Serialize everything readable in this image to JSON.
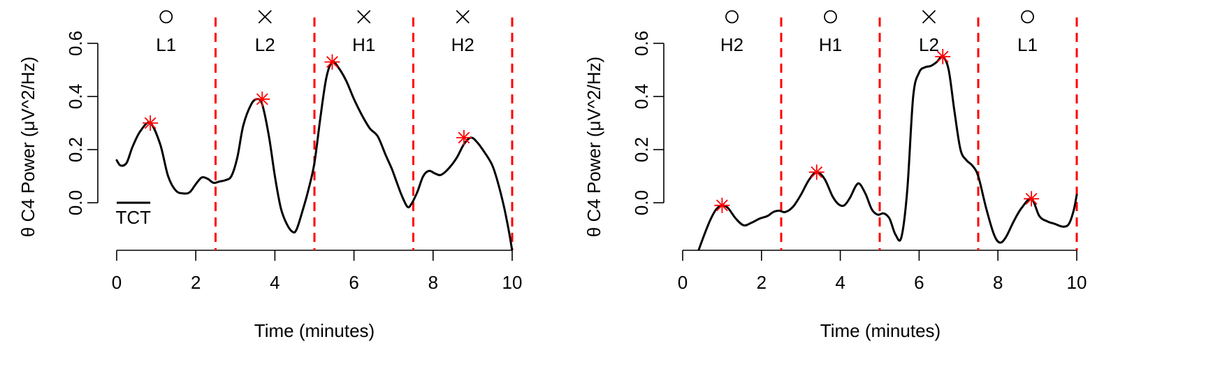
{
  "chart_data": [
    {
      "type": "line",
      "xlabel": "Time (minutes)",
      "ylabel": "θ C4 Power (μV^2/Hz)",
      "xlim": [
        0,
        10
      ],
      "ylim": [
        -0.18,
        0.6
      ],
      "xticks": [
        "0",
        "2",
        "4",
        "6",
        "8",
        "10"
      ],
      "yticks": [
        "0.0",
        "0.2",
        "0.4",
        "0.6"
      ],
      "boundaries": [
        2.5,
        5,
        7.5,
        10
      ],
      "segment_labels": [
        "L1",
        "L2",
        "H1",
        "H2"
      ],
      "segment_markers": [
        "circle",
        "cross",
        "cross",
        "cross"
      ],
      "annotation": "TCT",
      "series": [
        {
          "x": [
            0,
            0.1,
            0.25,
            0.4,
            0.6,
            0.85,
            1.1,
            1.3,
            1.5,
            1.7,
            1.85,
            2.0,
            2.15,
            2.3,
            2.45,
            2.6,
            2.75,
            2.9,
            3.05,
            3.2,
            3.4,
            3.55,
            3.68,
            3.85,
            4.0,
            4.15,
            4.3,
            4.45,
            4.55,
            4.7,
            4.85,
            5.0,
            5.15,
            5.3,
            5.45,
            5.6,
            5.8,
            6.0,
            6.2,
            6.4,
            6.6,
            6.8,
            6.95,
            7.05,
            7.2,
            7.35,
            7.45,
            7.6,
            7.75,
            7.9,
            8.05,
            8.2,
            8.4,
            8.6,
            8.78,
            8.95,
            9.1,
            9.3,
            9.5,
            9.65,
            9.8,
            9.92,
            10.0
          ],
          "y": [
            0.16,
            0.14,
            0.15,
            0.21,
            0.27,
            0.3,
            0.22,
            0.1,
            0.045,
            0.035,
            0.04,
            0.07,
            0.095,
            0.09,
            0.075,
            0.08,
            0.085,
            0.1,
            0.17,
            0.29,
            0.37,
            0.39,
            0.37,
            0.25,
            0.1,
            -0.02,
            -0.08,
            -0.11,
            -0.1,
            -0.03,
            0.05,
            0.15,
            0.32,
            0.47,
            0.53,
            0.51,
            0.46,
            0.39,
            0.33,
            0.28,
            0.25,
            0.18,
            0.13,
            0.09,
            0.03,
            -0.015,
            -0.005,
            0.04,
            0.1,
            0.12,
            0.11,
            0.105,
            0.13,
            0.17,
            0.22,
            0.245,
            0.23,
            0.19,
            0.14,
            0.07,
            -0.02,
            -0.11,
            -0.18
          ]
        }
      ],
      "peaks": [
        {
          "x": 0.85,
          "y": 0.3
        },
        {
          "x": 3.68,
          "y": 0.39
        },
        {
          "x": 5.45,
          "y": 0.53
        },
        {
          "x": 8.78,
          "y": 0.245
        }
      ],
      "peak_color": "#ff0000",
      "boundary_color": "#ff0000",
      "line_color": "#000000"
    },
    {
      "type": "line",
      "xlabel": "Time (minutes)",
      "ylabel": "θ C4 Power (μV^2/Hz)",
      "xlim": [
        0,
        10
      ],
      "ylim": [
        -0.18,
        0.6
      ],
      "xticks": [
        "0",
        "2",
        "4",
        "6",
        "8",
        "10"
      ],
      "yticks": [
        "0.0",
        "0.2",
        "0.4",
        "0.6"
      ],
      "boundaries": [
        2.5,
        5,
        7.5,
        10
      ],
      "segment_labels": [
        "H2",
        "H1",
        "L2",
        "L1"
      ],
      "segment_markers": [
        "circle",
        "circle",
        "cross",
        "circle"
      ],
      "series": [
        {
          "x": [
            0.4,
            0.55,
            0.7,
            0.85,
            1.0,
            1.15,
            1.35,
            1.55,
            1.75,
            1.95,
            2.15,
            2.3,
            2.45,
            2.6,
            2.8,
            3.0,
            3.2,
            3.4,
            3.6,
            3.8,
            3.95,
            4.1,
            4.25,
            4.4,
            4.5,
            4.65,
            4.8,
            4.95,
            5.1,
            5.25,
            5.4,
            5.55,
            5.7,
            5.85,
            6.0,
            6.15,
            6.3,
            6.45,
            6.6,
            6.75,
            6.9,
            7.05,
            7.2,
            7.35,
            7.5,
            7.7,
            7.9,
            8.05,
            8.2,
            8.4,
            8.6,
            8.85,
            9.05,
            9.25,
            9.45,
            9.65,
            9.8,
            9.92,
            10.0
          ],
          "y": [
            -0.18,
            -0.12,
            -0.065,
            -0.025,
            -0.01,
            -0.02,
            -0.06,
            -0.085,
            -0.075,
            -0.06,
            -0.05,
            -0.035,
            -0.03,
            -0.035,
            -0.015,
            0.03,
            0.085,
            0.115,
            0.09,
            0.025,
            -0.005,
            -0.01,
            0.02,
            0.065,
            0.07,
            0.03,
            -0.025,
            -0.045,
            -0.04,
            -0.06,
            -0.12,
            -0.13,
            0.05,
            0.4,
            0.49,
            0.51,
            0.515,
            0.53,
            0.55,
            0.5,
            0.34,
            0.2,
            0.16,
            0.14,
            0.1,
            -0.02,
            -0.12,
            -0.15,
            -0.13,
            -0.07,
            -0.02,
            0.015,
            -0.05,
            -0.07,
            -0.08,
            -0.09,
            -0.08,
            -0.03,
            0.03
          ]
        }
      ],
      "peaks": [
        {
          "x": 1.0,
          "y": -0.01
        },
        {
          "x": 3.4,
          "y": 0.115
        },
        {
          "x": 6.6,
          "y": 0.55
        },
        {
          "x": 8.85,
          "y": 0.015
        }
      ],
      "peak_color": "#ff0000",
      "boundary_color": "#ff0000",
      "line_color": "#000000"
    }
  ]
}
